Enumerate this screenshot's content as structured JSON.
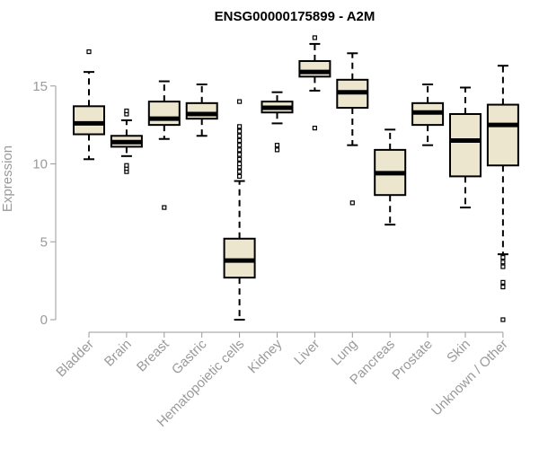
{
  "chart_data": {
    "type": "boxplot",
    "title": "ENSG00000175899 - A2M",
    "xlabel": "",
    "ylabel": "Expression",
    "ylim": [
      0,
      18
    ],
    "yticks": [
      0,
      5,
      10,
      15
    ],
    "grid": false,
    "colors": {
      "box_fill": "#ede6cf",
      "stroke": "#000000",
      "axis_text": "#9a9a9a"
    },
    "categories": [
      "Bladder",
      "Brain",
      "Breast",
      "Gastric",
      "Hematopoietic cells",
      "Kidney",
      "Liver",
      "Lung",
      "Pancreas",
      "Prostate",
      "Skin",
      "Unknown / Other"
    ],
    "boxes": [
      {
        "label": "Bladder",
        "whisker_low": 10.3,
        "q1": 11.9,
        "median": 12.6,
        "q3": 13.7,
        "whisker_high": 15.9,
        "outliers": [
          17.2
        ]
      },
      {
        "label": "Brain",
        "whisker_low": 10.5,
        "q1": 11.1,
        "median": 11.4,
        "q3": 11.8,
        "whisker_high": 12.8,
        "outliers": [
          9.5,
          9.7,
          9.9,
          13.2,
          13.4
        ]
      },
      {
        "label": "Breast",
        "whisker_low": 11.6,
        "q1": 12.5,
        "median": 12.9,
        "q3": 14.0,
        "whisker_high": 15.3,
        "outliers": [
          7.2
        ]
      },
      {
        "label": "Gastric",
        "whisker_low": 11.8,
        "q1": 12.9,
        "median": 13.2,
        "q3": 13.9,
        "whisker_high": 15.1,
        "outliers": []
      },
      {
        "label": "Hematopoietic cells",
        "whisker_low": 0.0,
        "q1": 2.7,
        "median": 3.8,
        "q3": 5.2,
        "whisker_high": 8.9,
        "outliers": [
          9.2,
          9.5,
          9.8,
          10.0,
          10.3,
          10.6,
          10.9,
          11.2,
          11.5,
          11.8,
          12.1,
          12.4,
          14.0
        ]
      },
      {
        "label": "Kidney",
        "whisker_low": 12.6,
        "q1": 13.3,
        "median": 13.6,
        "q3": 14.0,
        "whisker_high": 14.6,
        "outliers": [
          10.9,
          11.2
        ]
      },
      {
        "label": "Liver",
        "whisker_low": 14.7,
        "q1": 15.6,
        "median": 15.9,
        "q3": 16.6,
        "whisker_high": 17.7,
        "outliers": [
          12.3,
          18.1
        ]
      },
      {
        "label": "Lung",
        "whisker_low": 11.2,
        "q1": 13.6,
        "median": 14.6,
        "q3": 15.4,
        "whisker_high": 17.1,
        "outliers": [
          7.5
        ]
      },
      {
        "label": "Pancreas",
        "whisker_low": 6.1,
        "q1": 8.0,
        "median": 9.4,
        "q3": 10.9,
        "whisker_high": 12.2,
        "outliers": []
      },
      {
        "label": "Prostate",
        "whisker_low": 11.2,
        "q1": 12.5,
        "median": 13.3,
        "q3": 13.9,
        "whisker_high": 15.1,
        "outliers": []
      },
      {
        "label": "Skin",
        "whisker_low": 7.2,
        "q1": 9.2,
        "median": 11.5,
        "q3": 13.2,
        "whisker_high": 14.9,
        "outliers": []
      },
      {
        "label": "Unknown / Other",
        "whisker_low": 4.2,
        "q1": 9.9,
        "median": 12.5,
        "q3": 13.8,
        "whisker_high": 16.3,
        "outliers": [
          0.0,
          2.1,
          2.4,
          3.4,
          3.7,
          4.0
        ]
      }
    ]
  }
}
